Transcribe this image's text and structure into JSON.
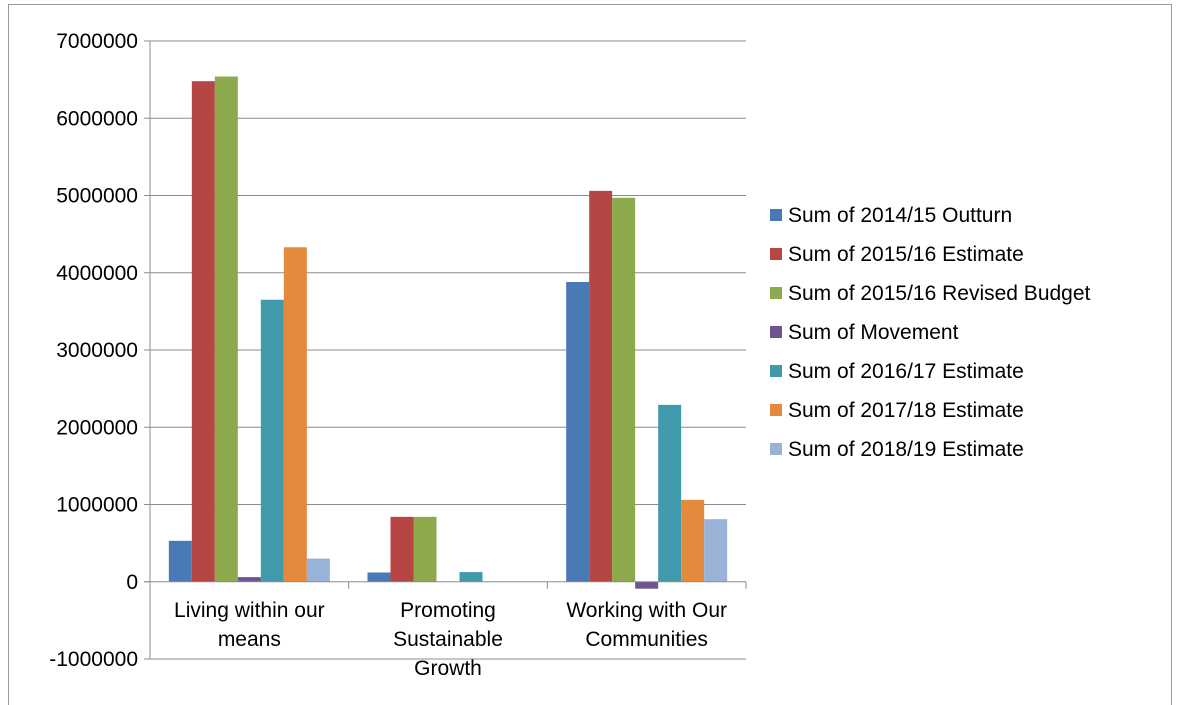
{
  "chart_data": {
    "type": "bar",
    "title": "",
    "xlabel": "",
    "ylabel": "",
    "categories": [
      [
        "Living within our",
        "means"
      ],
      [
        "Promoting",
        "Sustainable",
        "Growth"
      ],
      [
        "Working with Our",
        "Communities"
      ]
    ],
    "ylim": [
      -1000000,
      7000000
    ],
    "yticks": [
      7000000,
      6000000,
      5000000,
      4000000,
      3000000,
      2000000,
      1000000,
      0,
      -1000000
    ],
    "grid": true,
    "legend_position": "right",
    "series": [
      {
        "name": "Sum of 2014/15 Outturn",
        "color": "#4a7ab5",
        "values": [
          530000,
          120000,
          3880000
        ]
      },
      {
        "name": "Sum of 2015/16 Estimate",
        "color": "#b54644",
        "values": [
          6480000,
          840000,
          5060000
        ]
      },
      {
        "name": "Sum of 2015/16 Revised Budget",
        "color": "#8caa4c",
        "values": [
          6540000,
          840000,
          4970000
        ]
      },
      {
        "name": "Sum of Movement",
        "color": "#6e558f",
        "values": [
          60000,
          0,
          -90000
        ]
      },
      {
        "name": "Sum of 2016/17  Estimate",
        "color": "#4199ac",
        "values": [
          3650000,
          125000,
          2290000
        ]
      },
      {
        "name": "Sum of 2017/18  Estimate",
        "color": "#e38a3c",
        "values": [
          4330000,
          0,
          1060000
        ]
      },
      {
        "name": "Sum of 2018/19  Estimate",
        "color": "#98b2d8",
        "values": [
          300000,
          0,
          810000
        ]
      }
    ]
  }
}
